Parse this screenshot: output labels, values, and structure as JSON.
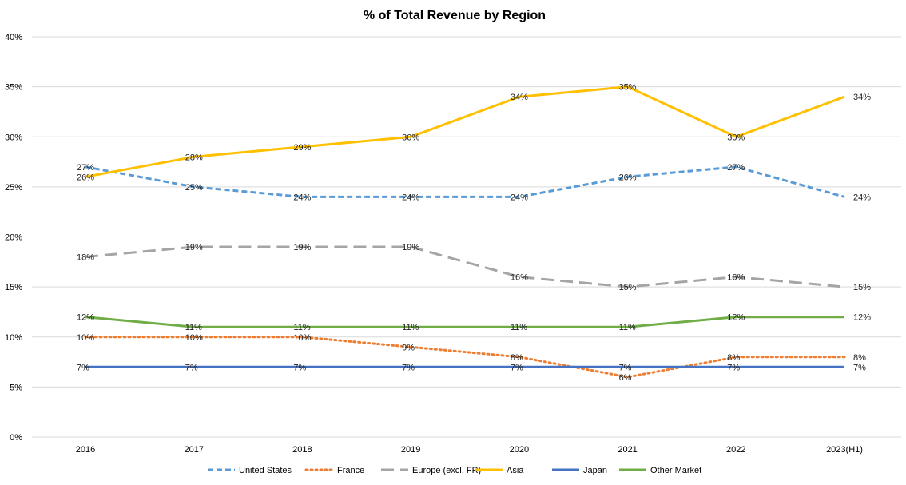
{
  "chart_data": {
    "type": "line",
    "title": "% of Total Revenue by Region",
    "xlabel": "",
    "ylabel": "",
    "categories": [
      "2016",
      "2017",
      "2018",
      "2019",
      "2020",
      "2021",
      "2022",
      "2023(H1)"
    ],
    "ylim": [
      0,
      40
    ],
    "y_ticks": [
      "0%",
      "5%",
      "10%",
      "15%",
      "20%",
      "25%",
      "30%",
      "35%",
      "40%"
    ],
    "grid": true,
    "legend_position": "bottom",
    "series": [
      {
        "name": "United States",
        "values": [
          27,
          25,
          24,
          24,
          24,
          26,
          27,
          24
        ],
        "labels": [
          "27%",
          "25%",
          "24%",
          "24%",
          "24%",
          "26%",
          "27%",
          "24%"
        ],
        "color": "#5b9bd5",
        "line_style": "dash"
      },
      {
        "name": "France",
        "values": [
          10,
          10,
          10,
          9,
          8,
          6,
          8,
          8
        ],
        "labels": [
          "10%",
          "10%",
          "10%",
          "9%",
          "8%",
          "6%",
          "8%",
          "8%"
        ],
        "color": "#ed7d31",
        "line_style": "dot"
      },
      {
        "name": "Europe (excl. FR)",
        "values": [
          18,
          19,
          19,
          19,
          16,
          15,
          16,
          15
        ],
        "labels": [
          "18%",
          "19%",
          "19%",
          "19%",
          "16%",
          "15%",
          "16%",
          "15%"
        ],
        "color": "#a5a5a5",
        "line_style": "long-dash"
      },
      {
        "name": "Asia",
        "values": [
          26,
          28,
          29,
          30,
          34,
          35,
          30,
          34
        ],
        "labels": [
          "26%",
          "28%",
          "29%",
          "30%",
          "34%",
          "35%",
          "30%",
          "34%"
        ],
        "color": "#ffc000",
        "line_style": "solid"
      },
      {
        "name": "Japan",
        "values": [
          7,
          7,
          7,
          7,
          7,
          7,
          7,
          7
        ],
        "labels": [
          "7%",
          "7%",
          "7%",
          "7%",
          "7%",
          "7%",
          "7%",
          "7%"
        ],
        "color": "#4472c4",
        "line_style": "solid"
      },
      {
        "name": "Other Market",
        "values": [
          12,
          11,
          11,
          11,
          11,
          11,
          12,
          12
        ],
        "labels": [
          "12%",
          "11%",
          "11%",
          "11%",
          "11%",
          "11%",
          "12%",
          "12%"
        ],
        "color": "#70ad47",
        "line_style": "solid"
      }
    ]
  }
}
